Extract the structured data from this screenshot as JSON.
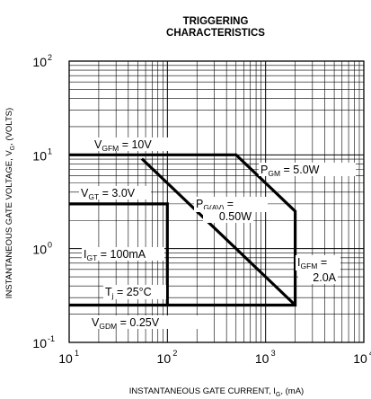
{
  "chart_data": {
    "type": "line",
    "title": "TRIGGERING CHARACTERISTICS",
    "xlabel": "INSTANTANEOUS GATE CURRENT, IG, (mA)",
    "ylabel": "INSTANTANEOUS GATE VOLTAGE, VG, (VOLTS)",
    "xscale": "log",
    "yscale": "log",
    "xlim": [
      10,
      10000
    ],
    "ylim": [
      0.1,
      100
    ],
    "grid": true,
    "x_ticks": [
      "10",
      "10",
      "10",
      "10"
    ],
    "x_tick_exponents": [
      "1",
      "2",
      "3",
      "4"
    ],
    "y_ticks": [
      "10",
      "10",
      "10",
      "10"
    ],
    "y_tick_exponents": [
      "-1",
      "0",
      "1",
      "2"
    ],
    "series": [
      {
        "x": [
          10,
          2000,
          2000,
          500,
          10
        ],
        "y": [
          0.25,
          0.25,
          2.5,
          10,
          10
        ]
      },
      {
        "x": [
          10,
          100,
          100
        ],
        "y": [
          3.0,
          3.0,
          0.25
        ]
      },
      {
        "x": [
          55,
          2000
        ],
        "y": [
          9.1,
          0.25
        ]
      }
    ],
    "annotations": {
      "vgfm": {
        "main": "V",
        "sub": "GFM",
        "rest": " = 10V"
      },
      "pgm": {
        "main": "P",
        "sub": "GM",
        "rest": " = 5.0W"
      },
      "vgt": {
        "main": "V",
        "sub": "GT",
        "rest": " = 3.0V"
      },
      "pgav": {
        "main": "P",
        "sub": "G(AV)",
        "rest": " =",
        "line2": "0.50W"
      },
      "igt": {
        "main": "I",
        "sub": "GT",
        "rest": " = 100mA"
      },
      "igfm": {
        "main": "I",
        "sub": "GFM",
        "rest": " =",
        "line2": "2.0A"
      },
      "tj": {
        "main": "T",
        "sub": "j",
        "rest": " = 25°C"
      },
      "vgdm": {
        "main": "V",
        "sub": "GDM",
        "rest": " = 0.25V"
      }
    }
  }
}
